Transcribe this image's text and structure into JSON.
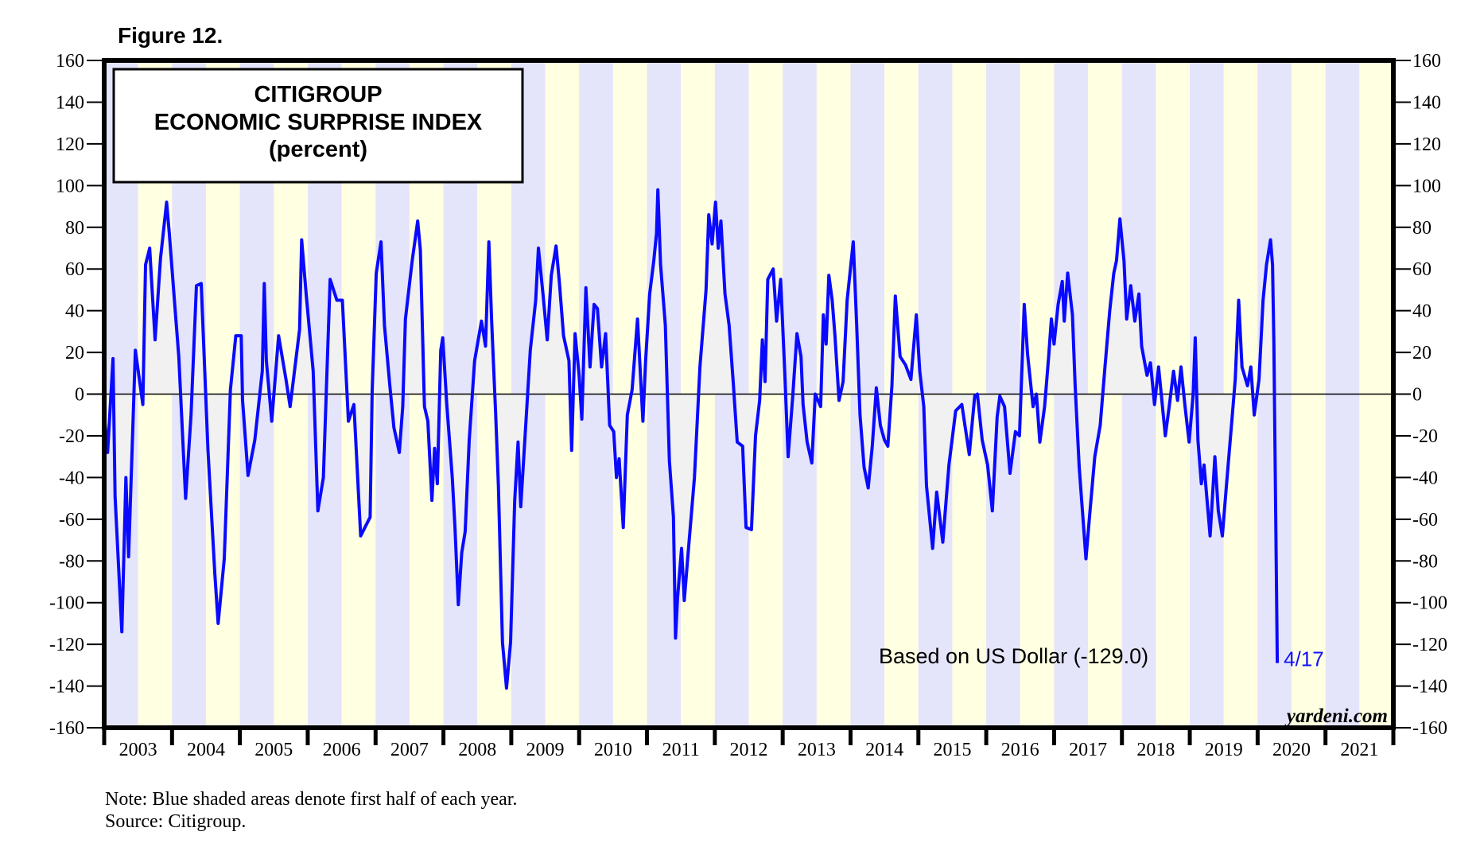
{
  "figure_label": "Figure 12.",
  "footer": {
    "note": "Note: Blue shaded areas denote first half of each year.",
    "source": "Source: Citigroup."
  },
  "colors": {
    "line": "#0a0aff",
    "first_half_shade": "#e4e4fb",
    "second_half_shade": "#ffffe1",
    "area_fill": "#f1f1f1",
    "end_label": "#1010ff"
  },
  "chart_data": {
    "type": "line",
    "title": [
      "CITIGROUP",
      "ECONOMIC SURPRISE INDEX",
      "(percent)"
    ],
    "xlabel": "",
    "ylabel": "",
    "ylim": [
      -160,
      160
    ],
    "xlim": [
      2003,
      2022
    ],
    "yticks": [
      160,
      140,
      120,
      100,
      80,
      60,
      40,
      20,
      0,
      -20,
      -40,
      -60,
      -80,
      -100,
      -120,
      -140,
      -160
    ],
    "ytick_labels_left": [
      "160",
      "140",
      "120",
      "100",
      "80",
      "60",
      "40",
      "20",
      "0",
      "-20",
      "-40",
      "-60",
      "-80",
      "-100",
      "-120",
      "-140",
      "-160"
    ],
    "ytick_labels_right": [
      "160",
      "140",
      "120",
      "100",
      "80",
      "60",
      "40",
      "20",
      "0",
      "-20",
      "-40",
      "-60",
      "-80",
      "-100",
      "-120",
      "-140",
      "-160"
    ],
    "xtick_labels": [
      "2003",
      "2004",
      "2005",
      "2006",
      "2007",
      "2008",
      "2009",
      "2010",
      "2011",
      "2012",
      "2013",
      "2014",
      "2015",
      "2016",
      "2017",
      "2018",
      "2019",
      "2020",
      "2021"
    ],
    "shading": "first half of each year shaded blue, second half yellow",
    "zero_line": true,
    "area_to_zero": true,
    "annotation": "Based on US Dollar (-129.0)",
    "end_label": "4/17",
    "last_value": -129.0,
    "watermark": "yardeni.com",
    "series": [
      {
        "name": "Citigroup Economic Surprise Index (USD)",
        "points": [
          [
            2002.99,
            -6
          ],
          [
            2003.05,
            -28
          ],
          [
            2003.13,
            17
          ],
          [
            2003.16,
            -49
          ],
          [
            2003.26,
            -114
          ],
          [
            2003.32,
            -40
          ],
          [
            2003.36,
            -78
          ],
          [
            2003.46,
            21
          ],
          [
            2003.57,
            -5
          ],
          [
            2003.61,
            62
          ],
          [
            2003.67,
            70
          ],
          [
            2003.75,
            26
          ],
          [
            2003.83,
            65
          ],
          [
            2003.92,
            92
          ],
          [
            2003.96,
            77
          ],
          [
            2004.04,
            43
          ],
          [
            2004.1,
            18
          ],
          [
            2004.2,
            -50
          ],
          [
            2004.28,
            -10
          ],
          [
            2004.36,
            52
          ],
          [
            2004.43,
            53
          ],
          [
            2004.53,
            -27
          ],
          [
            2004.63,
            -86
          ],
          [
            2004.68,
            -110
          ],
          [
            2004.77,
            -79
          ],
          [
            2004.86,
            2
          ],
          [
            2004.94,
            28
          ],
          [
            2005.02,
            28
          ],
          [
            2005.04,
            -3
          ],
          [
            2005.12,
            -39
          ],
          [
            2005.22,
            -22
          ],
          [
            2005.33,
            11
          ],
          [
            2005.36,
            53
          ],
          [
            2005.39,
            16
          ],
          [
            2005.47,
            -13
          ],
          [
            2005.57,
            28
          ],
          [
            2005.68,
            7
          ],
          [
            2005.74,
            -6
          ],
          [
            2005.88,
            31
          ],
          [
            2005.91,
            74
          ],
          [
            2005.98,
            47
          ],
          [
            2006.08,
            11
          ],
          [
            2006.15,
            -56
          ],
          [
            2006.23,
            -40
          ],
          [
            2006.33,
            55
          ],
          [
            2006.43,
            45
          ],
          [
            2006.51,
            45
          ],
          [
            2006.6,
            -13
          ],
          [
            2006.68,
            -5
          ],
          [
            2006.78,
            -68
          ],
          [
            2006.92,
            -59
          ],
          [
            2006.95,
            2
          ],
          [
            2007.01,
            58
          ],
          [
            2007.08,
            73
          ],
          [
            2007.13,
            33
          ],
          [
            2007.21,
            4
          ],
          [
            2007.27,
            -16
          ],
          [
            2007.35,
            -28
          ],
          [
            2007.4,
            -6
          ],
          [
            2007.44,
            36
          ],
          [
            2007.54,
            64
          ],
          [
            2007.62,
            83
          ],
          [
            2007.66,
            69
          ],
          [
            2007.72,
            -6
          ],
          [
            2007.77,
            -13
          ],
          [
            2007.83,
            -51
          ],
          [
            2007.87,
            -26
          ],
          [
            2007.91,
            -43
          ],
          [
            2007.96,
            21
          ],
          [
            2007.99,
            27
          ],
          [
            2008.05,
            -5
          ],
          [
            2008.13,
            -40
          ],
          [
            2008.17,
            -64
          ],
          [
            2008.22,
            -101
          ],
          [
            2008.27,
            -76
          ],
          [
            2008.32,
            -66
          ],
          [
            2008.38,
            -22
          ],
          [
            2008.46,
            16
          ],
          [
            2008.56,
            35
          ],
          [
            2008.62,
            23
          ],
          [
            2008.67,
            73
          ],
          [
            2008.71,
            35
          ],
          [
            2008.77,
            -10
          ],
          [
            2008.81,
            -44
          ],
          [
            2008.87,
            -119
          ],
          [
            2008.93,
            -141
          ],
          [
            2008.99,
            -119
          ],
          [
            2009.05,
            -51
          ],
          [
            2009.1,
            -23
          ],
          [
            2009.14,
            -54
          ],
          [
            2009.22,
            -11
          ],
          [
            2009.28,
            21
          ],
          [
            2009.36,
            45
          ],
          [
            2009.4,
            70
          ],
          [
            2009.47,
            47
          ],
          [
            2009.53,
            26
          ],
          [
            2009.59,
            57
          ],
          [
            2009.66,
            71
          ],
          [
            2009.71,
            53
          ],
          [
            2009.77,
            28
          ],
          [
            2009.85,
            16
          ],
          [
            2009.89,
            -27
          ],
          [
            2009.94,
            29
          ],
          [
            2010.0,
            9
          ],
          [
            2010.04,
            -12
          ],
          [
            2010.1,
            51
          ],
          [
            2010.16,
            13
          ],
          [
            2010.22,
            43
          ],
          [
            2010.27,
            41
          ],
          [
            2010.33,
            13
          ],
          [
            2010.39,
            29
          ],
          [
            2010.45,
            -15
          ],
          [
            2010.51,
            -18
          ],
          [
            2010.55,
            -40
          ],
          [
            2010.59,
            -31
          ],
          [
            2010.65,
            -64
          ],
          [
            2010.71,
            -10
          ],
          [
            2010.78,
            2
          ],
          [
            2010.86,
            36
          ],
          [
            2010.94,
            -13
          ],
          [
            2010.98,
            16
          ],
          [
            2011.04,
            48
          ],
          [
            2011.1,
            64
          ],
          [
            2011.14,
            77
          ],
          [
            2011.16,
            98
          ],
          [
            2011.2,
            62
          ],
          [
            2011.27,
            33
          ],
          [
            2011.33,
            -32
          ],
          [
            2011.39,
            -59
          ],
          [
            2011.42,
            -117
          ],
          [
            2011.45,
            -98
          ],
          [
            2011.51,
            -74
          ],
          [
            2011.55,
            -99
          ],
          [
            2011.62,
            -71
          ],
          [
            2011.7,
            -40
          ],
          [
            2011.78,
            13
          ],
          [
            2011.87,
            50
          ],
          [
            2011.91,
            86
          ],
          [
            2011.96,
            72
          ],
          [
            2012.01,
            92
          ],
          [
            2012.05,
            70
          ],
          [
            2012.09,
            83
          ],
          [
            2012.15,
            48
          ],
          [
            2012.21,
            33
          ],
          [
            2012.27,
            6
          ],
          [
            2012.33,
            -23
          ],
          [
            2012.41,
            -25
          ],
          [
            2012.46,
            -64
          ],
          [
            2012.54,
            -65
          ],
          [
            2012.6,
            -20
          ],
          [
            2012.66,
            -3
          ],
          [
            2012.7,
            26
          ],
          [
            2012.74,
            6
          ],
          [
            2012.78,
            55
          ],
          [
            2012.86,
            60
          ],
          [
            2012.91,
            35
          ],
          [
            2012.97,
            55
          ],
          [
            2013.03,
            11
          ],
          [
            2013.08,
            -30
          ],
          [
            2013.15,
            0
          ],
          [
            2013.21,
            29
          ],
          [
            2013.27,
            18
          ],
          [
            2013.3,
            -5
          ],
          [
            2013.36,
            -23
          ],
          [
            2013.43,
            -33
          ],
          [
            2013.48,
            0
          ],
          [
            2013.56,
            -6
          ],
          [
            2013.6,
            38
          ],
          [
            2013.64,
            24
          ],
          [
            2013.68,
            57
          ],
          [
            2013.73,
            45
          ],
          [
            2013.77,
            28
          ],
          [
            2013.83,
            -3
          ],
          [
            2013.89,
            6
          ],
          [
            2013.95,
            45
          ],
          [
            2014.04,
            73
          ],
          [
            2014.09,
            33
          ],
          [
            2014.14,
            -10
          ],
          [
            2014.2,
            -35
          ],
          [
            2014.26,
            -45
          ],
          [
            2014.32,
            -25
          ],
          [
            2014.38,
            3
          ],
          [
            2014.44,
            -15
          ],
          [
            2014.5,
            -22
          ],
          [
            2014.55,
            -25
          ],
          [
            2014.61,
            4
          ],
          [
            2014.66,
            47
          ],
          [
            2014.73,
            18
          ],
          [
            2014.81,
            14
          ],
          [
            2014.89,
            7
          ],
          [
            2014.97,
            38
          ],
          [
            2015.02,
            11
          ],
          [
            2015.08,
            -6
          ],
          [
            2015.12,
            -44
          ],
          [
            2015.21,
            -74
          ],
          [
            2015.27,
            -47
          ],
          [
            2015.36,
            -71
          ],
          [
            2015.45,
            -34
          ],
          [
            2015.55,
            -8
          ],
          [
            2015.64,
            -5
          ],
          [
            2015.75,
            -29
          ],
          [
            2015.83,
            -1
          ],
          [
            2015.87,
            0
          ],
          [
            2015.94,
            -22
          ],
          [
            2016.02,
            -34
          ],
          [
            2016.09,
            -56
          ],
          [
            2016.16,
            -11
          ],
          [
            2016.2,
            -1
          ],
          [
            2016.27,
            -6
          ],
          [
            2016.35,
            -38
          ],
          [
            2016.43,
            -18
          ],
          [
            2016.49,
            -20
          ],
          [
            2016.56,
            43
          ],
          [
            2016.61,
            19
          ],
          [
            2016.69,
            -6
          ],
          [
            2016.74,
            0
          ],
          [
            2016.79,
            -23
          ],
          [
            2016.86,
            -6
          ],
          [
            2016.92,
            18
          ],
          [
            2016.96,
            36
          ],
          [
            2017.0,
            24
          ],
          [
            2017.06,
            43
          ],
          [
            2017.12,
            54
          ],
          [
            2017.15,
            35
          ],
          [
            2017.2,
            58
          ],
          [
            2017.27,
            38
          ],
          [
            2017.31,
            4
          ],
          [
            2017.37,
            -35
          ],
          [
            2017.47,
            -79
          ],
          [
            2017.53,
            -56
          ],
          [
            2017.6,
            -30
          ],
          [
            2017.68,
            -15
          ],
          [
            2017.75,
            13
          ],
          [
            2017.82,
            40
          ],
          [
            2017.88,
            58
          ],
          [
            2017.92,
            64
          ],
          [
            2017.97,
            84
          ],
          [
            2018.03,
            64
          ],
          [
            2018.07,
            36
          ],
          [
            2018.13,
            52
          ],
          [
            2018.19,
            35
          ],
          [
            2018.25,
            48
          ],
          [
            2018.29,
            23
          ],
          [
            2018.37,
            9
          ],
          [
            2018.42,
            15
          ],
          [
            2018.48,
            -5
          ],
          [
            2018.54,
            13
          ],
          [
            2018.64,
            -20
          ],
          [
            2018.7,
            -5
          ],
          [
            2018.76,
            11
          ],
          [
            2018.82,
            -3
          ],
          [
            2018.87,
            13
          ],
          [
            2018.93,
            -6
          ],
          [
            2018.99,
            -23
          ],
          [
            2019.05,
            0
          ],
          [
            2019.08,
            27
          ],
          [
            2019.12,
            -22
          ],
          [
            2019.17,
            -43
          ],
          [
            2019.21,
            -34
          ],
          [
            2019.3,
            -68
          ],
          [
            2019.37,
            -30
          ],
          [
            2019.42,
            -56
          ],
          [
            2019.48,
            -68
          ],
          [
            2019.54,
            -44
          ],
          [
            2019.62,
            -13
          ],
          [
            2019.67,
            7
          ],
          [
            2019.72,
            45
          ],
          [
            2019.77,
            13
          ],
          [
            2019.85,
            4
          ],
          [
            2019.9,
            13
          ],
          [
            2019.95,
            -10
          ],
          [
            2020.02,
            7
          ],
          [
            2020.08,
            45
          ],
          [
            2020.13,
            62
          ],
          [
            2020.19,
            74
          ],
          [
            2020.22,
            62
          ],
          [
            2020.24,
            24
          ],
          [
            2020.26,
            -40
          ],
          [
            2020.29,
            -129
          ]
        ]
      }
    ]
  }
}
